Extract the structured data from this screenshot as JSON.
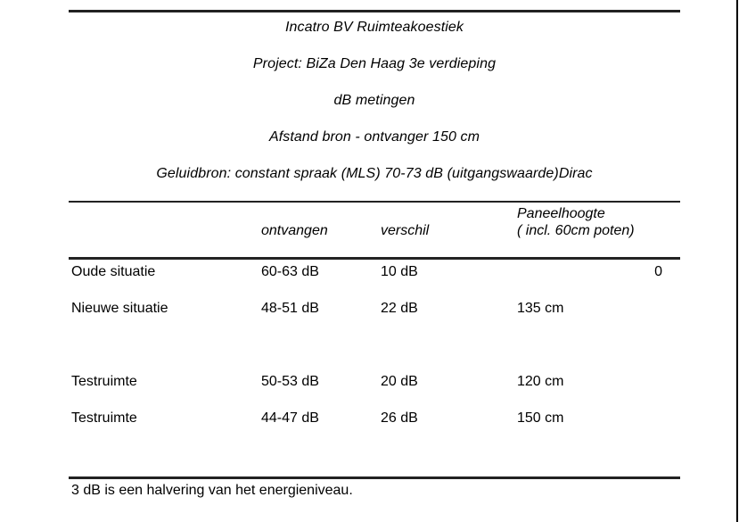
{
  "page": {
    "background": "#ffffff",
    "rule_color": "#222222",
    "text_color": "#000000",
    "edge_line_color": "#000000"
  },
  "header": {
    "lines": [
      "Incatro BV Ruimteakoestiek",
      "Project: BiZa Den Haag 3e verdieping",
      "dB metingen",
      "Afstand bron - ontvanger 150 cm",
      "Geluidbron: constant spraak (MLS) 70-73 dB (uitgangswaarde)Dirac"
    ]
  },
  "table": {
    "header": {
      "ontvangen": "ontvangen",
      "verschil": "verschil",
      "paneelhoogte_line1": "Paneelhoogte",
      "paneelhoogte_line2": "( incl. 60cm poten)"
    },
    "rows": [
      {
        "label": "Oude situatie",
        "ontvangen": "60-63 dB",
        "verschil": "10 dB",
        "paneelhoogte": "0"
      },
      {
        "label": "Nieuwe situatie",
        "ontvangen": "48-51 dB",
        "verschil": "22 dB",
        "paneelhoogte": "135 cm"
      },
      {
        "label": "Testruimte",
        "ontvangen": "50-53 dB",
        "verschil": "20 dB",
        "paneelhoogte": "120 cm"
      },
      {
        "label": "Testruimte",
        "ontvangen": "44-47 dB",
        "verschil": "26 dB",
        "paneelhoogte": "150 cm"
      }
    ]
  },
  "footer": {
    "note": "3 dB is een halvering van het energieniveau."
  }
}
